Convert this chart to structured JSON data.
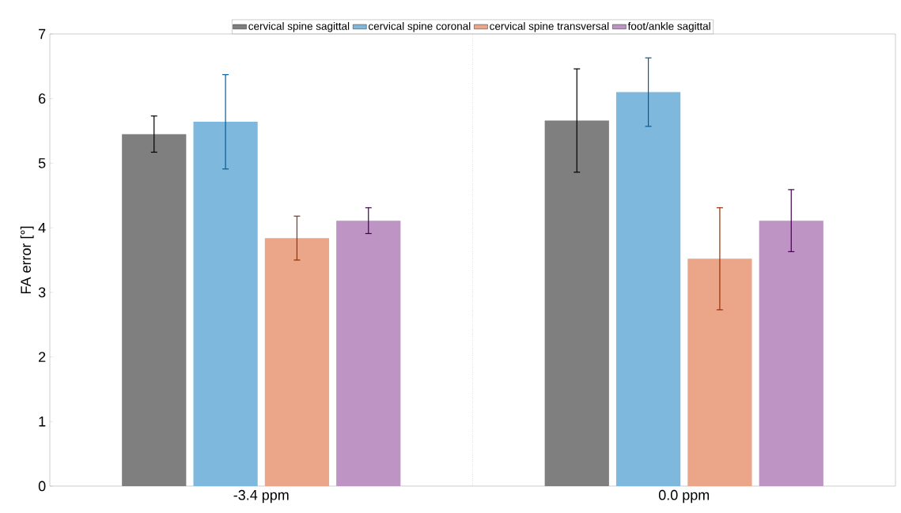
{
  "chart_data": {
    "type": "bar",
    "ylabel": "FA error [°]",
    "categories": [
      "-3.4 ppm",
      "0.0 ppm"
    ],
    "series": [
      {
        "name": "cervical spine sagittal",
        "color": "#7f7f7f",
        "values": [
          5.45,
          5.66
        ],
        "errors": [
          0.28,
          0.8
        ]
      },
      {
        "name": "cervical spine coronal",
        "color": "#7eb8dd",
        "values": [
          5.64,
          6.1
        ],
        "errors": [
          0.73,
          0.53
        ]
      },
      {
        "name": "cervical spine transversal",
        "color": "#eba68a",
        "values": [
          3.84,
          3.52
        ],
        "errors": [
          0.34,
          0.79
        ]
      },
      {
        "name": "foot/ankle sagittal",
        "color": "#be94c5",
        "values": [
          4.11,
          4.11
        ],
        "errors": [
          0.2,
          0.48
        ]
      }
    ],
    "ylim": [
      0,
      7
    ],
    "yticks": [
      0,
      1,
      2,
      3,
      4,
      5,
      6,
      7
    ],
    "grid": false,
    "legend": "top"
  }
}
